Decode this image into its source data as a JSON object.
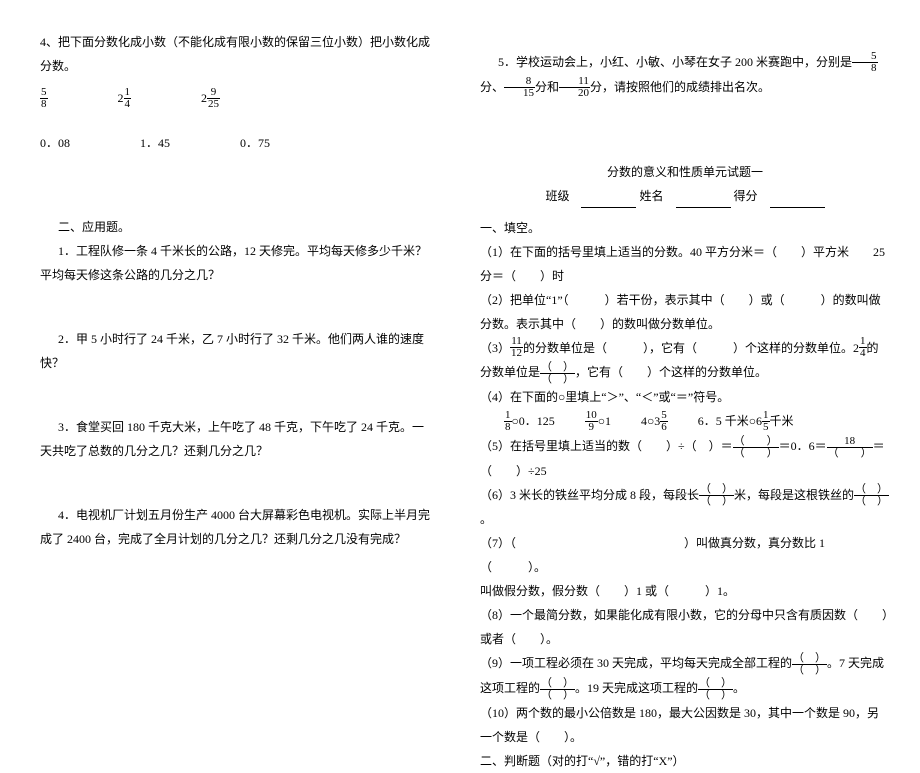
{
  "left": {
    "q4_title": "4、把下面分数化成小数（不能化成有限小数的保留三位小数）把小数化成分数。",
    "frac1": {
      "num": "5",
      "den": "8"
    },
    "mixed1_whole": "2",
    "frac2": {
      "num": "1",
      "den": "4"
    },
    "mixed2_whole": "2",
    "frac3": {
      "num": "9",
      "den": "25"
    },
    "dec1": "0．08",
    "dec2": "1．45",
    "dec3": "0．75",
    "section2": "二、应用题。",
    "app1": "1．工程队修一条 4 千米长的公路，12 天修完。平均每天修多少千米？平均每天修这条公路的几分之几？",
    "app2": "2．甲 5 小时行了 24 千米，乙 7 小时行了 32 千米。他们两人谁的速度快？",
    "app3": "3．食堂买回 180 千克大米，上午吃了 48 千克，下午吃了 24 千克。一天共吃了总数的几分之几？还剩几分之几？",
    "app4": "4．电视机厂计划五月份生产 4000 台大屏幕彩色电视机。实际上半月完成了 2400 台，完成了全月计划的几分之几？还剩几分之几没有完成？"
  },
  "right": {
    "app5_a": "5．学校运动会上，小红、小敏、小琴在女子 200 米赛跑中，分别是",
    "app5_f1": {
      "num": "5",
      "den": "8"
    },
    "app5_sep1": "分、",
    "app5_f2": {
      "num": "8",
      "den": "15"
    },
    "app5_sep2": "分和",
    "app5_f3": {
      "num": "11",
      "den": "20"
    },
    "app5_b": "分，请按照他们的成绩排出名次。",
    "title": "分数的意义和性质单元试题一",
    "label_class": "班级",
    "label_name": "姓名",
    "label_score": "得分",
    "sec1": "一、填空。",
    "fb1": "（1）在下面的括号里填上适当的分数。40 平方分米＝（　　）平方米　　25 分＝（　　）时",
    "fb2": "（2）把单位“1”（　　　）若干份，表示其中（　　）或（　　　）的数叫做分数。表示其中（　　）的数叫做分数单位。",
    "fb3_a": "（3）",
    "fb3_f1": {
      "num": "11",
      "den": "12"
    },
    "fb3_b": "的分数单位是（　　　），它有（　　　）个这样的分数单位。2",
    "fb3_f2": {
      "num": "1",
      "den": "4"
    },
    "fb3_c": "的分数单位是",
    "fb3_d": "，它有（　　）个这样的分数单位。",
    "fb4": "（4）在下面的○里填上“＞”、“＜”或“＝”符号。",
    "fb4_r1_f1": {
      "num": "1",
      "den": "8"
    },
    "fb4_r1_d1": "○0．125",
    "fb4_r1_f2": {
      "num": "10",
      "den": "9"
    },
    "fb4_r1_d2": "○1",
    "fb4_r1_w3": "4○3",
    "fb4_r1_f3": {
      "num": "5",
      "den": "6"
    },
    "fb4_r1_w4": "6．5 千米○6",
    "fb4_r1_f4": {
      "num": "1",
      "den": "5"
    },
    "fb4_r1_d4": "千米",
    "fb5_a": "（5）在括号里填上适当的数（　　）÷（　）＝",
    "fb5_b": "＝0．6＝",
    "fb5_f2n": "18",
    "fb5_c": "＝（　　）÷25",
    "fb6_a": "（6）3 米长的铁丝平均分成 8 段，每段长",
    "fb6_b": "米，每段是这根铁丝的",
    "fb6_c": "。",
    "fb7": "（7）（　　　　　　　　　　　　　　）叫做真分数，真分数比 1（　　　）。",
    "fb7b": "叫做假分数，假分数（　　）1 或（　　　）1。",
    "fb8": "（8）一个最简分数，如果能化成有限小数，它的分母中只含有质因数（　　）或者（　　）。",
    "fb9_a": "（9）一项工程必须在 30 天完成，平均每天完成全部工程的",
    "fb9_b": "。7 天完成这项工程的",
    "fb9_c": "。19 天完成这项工程的",
    "fb9_d": "。",
    "fb10": "（10）两个数的最小公倍数是 180，最大公因数是 30，其中一个数是 90，另一个数是（　　）。",
    "sec2": "二、判断题（对的打“√”，错的打“X”）"
  },
  "style": {
    "font_family": "SimSun",
    "text_color": "#000000",
    "bg_color": "#ffffff",
    "base_fontsize": 12
  }
}
